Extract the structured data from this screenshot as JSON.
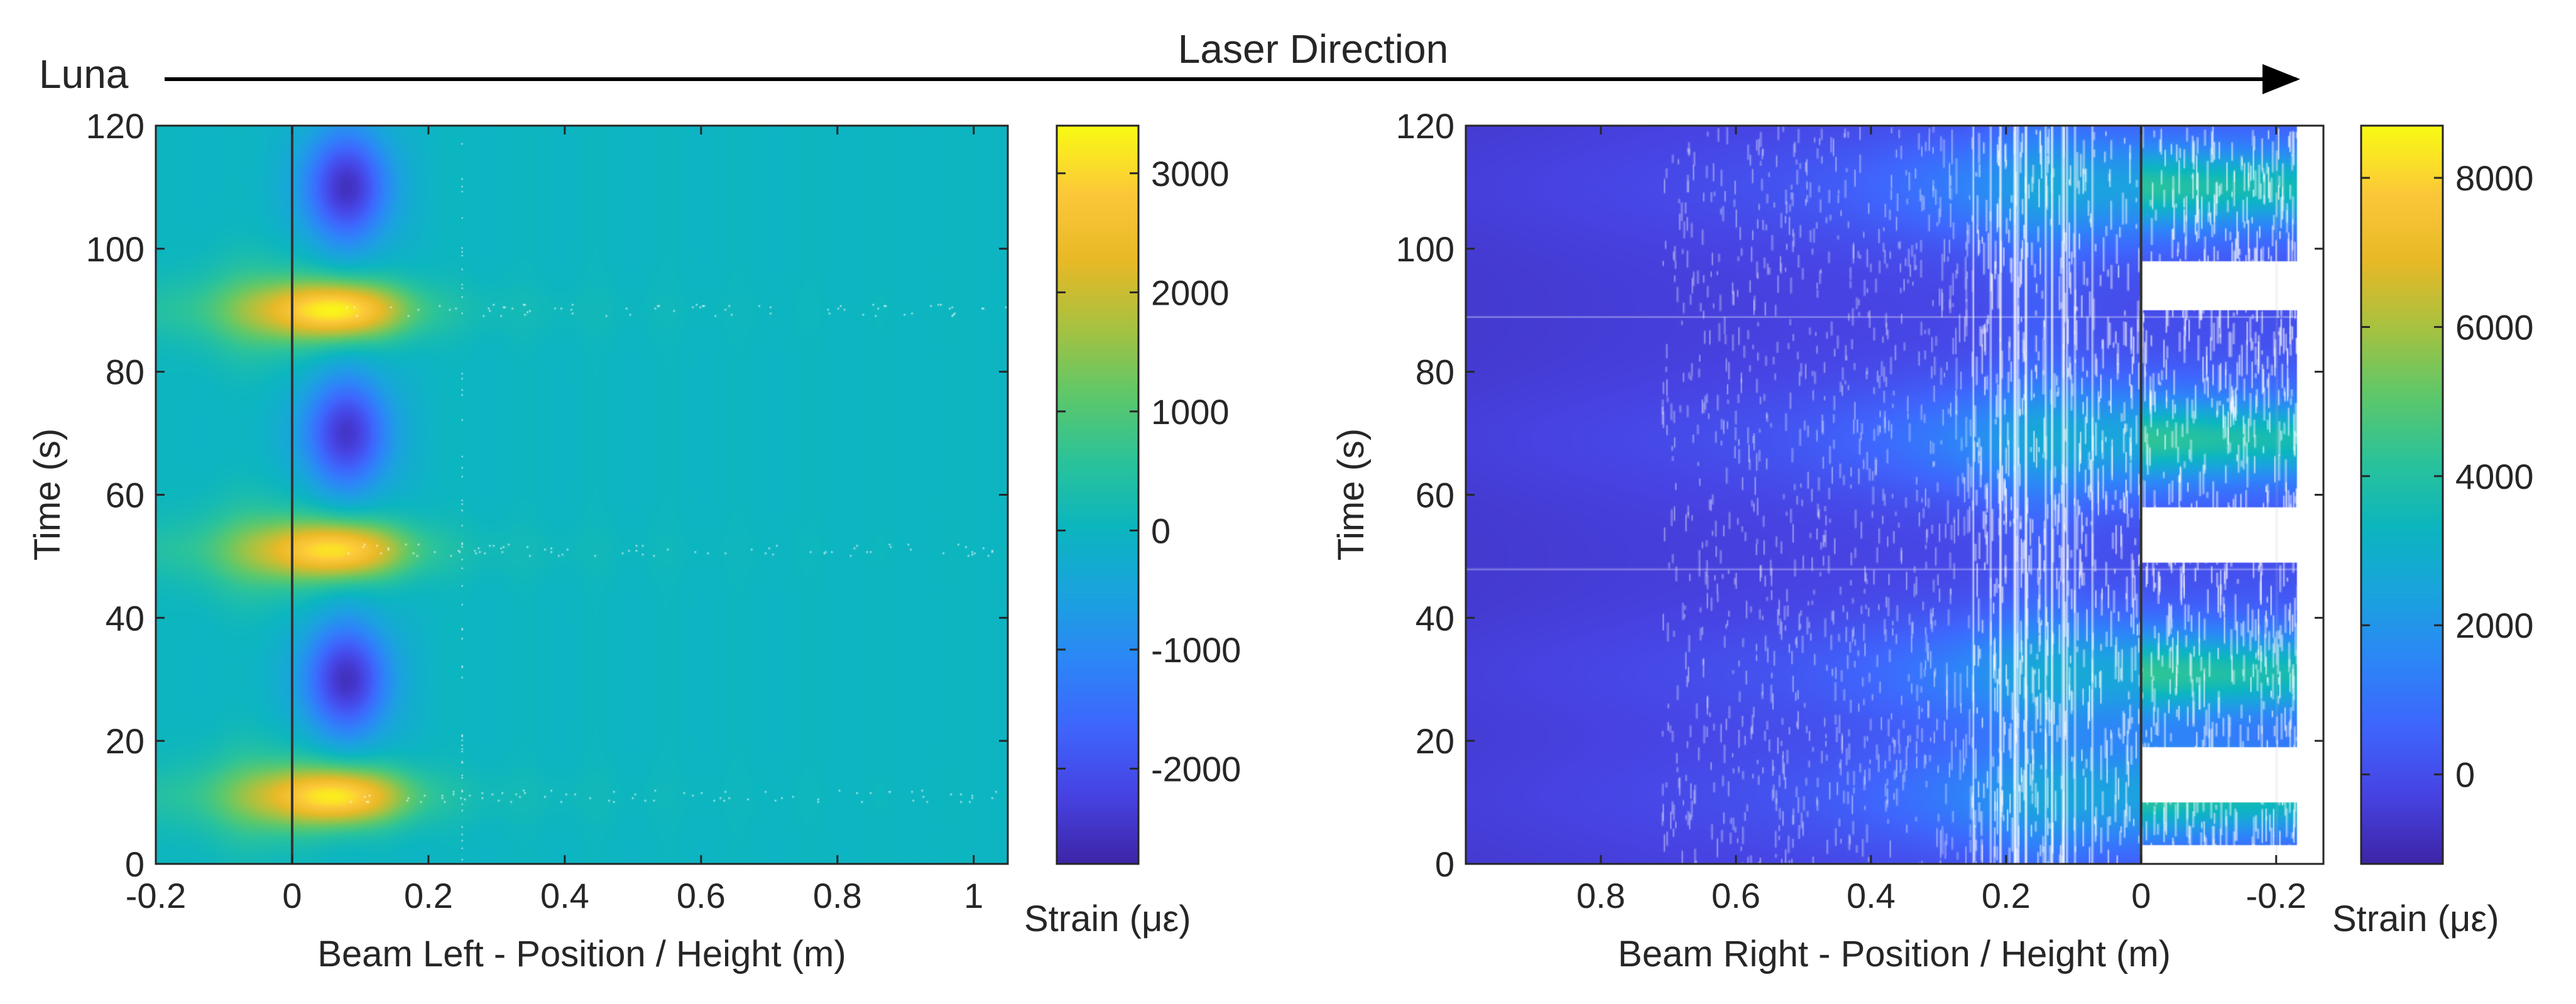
{
  "header": {
    "left_label": "Luna",
    "arrow_label": "Laser Direction"
  },
  "colors": {
    "cmap": [
      "#3e26a8",
      "#4743e3",
      "#3f65fd",
      "#2d86f8",
      "#1ba3df",
      "#0cb6c0",
      "#2bc39b",
      "#5fc86a",
      "#a8c241",
      "#e9b927",
      "#fcc83a",
      "#f9fb15"
    ],
    "axis": "#262626",
    "marker_line": "#333333"
  },
  "chart_data": [
    {
      "type": "heatmap",
      "id": "left",
      "xlabel": "Beam Left - Position / Height (m)",
      "ylabel": "Time (s)",
      "xlim": [
        -0.2,
        1.05
      ],
      "ylim": [
        0,
        120
      ],
      "x_reversed": false,
      "x_ticks": [
        -0.2,
        0,
        0.2,
        0.4,
        0.6,
        0.8,
        1
      ],
      "x_tick_labels": [
        "-0.2",
        "0",
        "0.2",
        "0.4",
        "0.6",
        "0.8",
        "1"
      ],
      "y_ticks": [
        0,
        20,
        40,
        60,
        80,
        100,
        120
      ],
      "y_tick_labels": [
        "0",
        "20",
        "40",
        "60",
        "80",
        "100",
        "120"
      ],
      "marker_x": 0,
      "colorbar": {
        "label": "Strain (με)",
        "range": [
          -2800,
          3400
        ],
        "ticks": [
          -2000,
          -1000,
          0,
          1000,
          2000,
          3000
        ],
        "tick_labels": [
          "-2000",
          "-1000",
          "0",
          "1000",
          "2000",
          "3000"
        ]
      },
      "background_strain": 0,
      "peaks": [
        {
          "t": 11,
          "strain": 3200
        },
        {
          "t": 51,
          "strain": 3100
        },
        {
          "t": 90,
          "strain": 3300
        }
      ],
      "troughs": [
        {
          "t": 30,
          "strain": -2500
        },
        {
          "t": 70,
          "strain": -2400
        },
        {
          "t": 110,
          "strain": -2500
        }
      ],
      "feature_center_x": 0.07
    },
    {
      "type": "heatmap",
      "id": "right",
      "xlabel": "Beam Right - Position / Height (m)",
      "ylabel": "Time (s)",
      "xlim": [
        -0.27,
        1.0
      ],
      "ylim": [
        0,
        120
      ],
      "x_reversed": true,
      "x_ticks": [
        0.8,
        0.6,
        0.4,
        0.2,
        0,
        -0.2
      ],
      "x_tick_labels": [
        "0.8",
        "0.6",
        "0.4",
        "0.2",
        "0",
        "-0.2"
      ],
      "y_ticks": [
        0,
        20,
        40,
        60,
        80,
        100,
        120
      ],
      "y_tick_labels": [
        "0",
        "20",
        "40",
        "60",
        "80",
        "100",
        "120"
      ],
      "marker_x": 0,
      "colorbar": {
        "label": "Strain (με)",
        "range": [
          -1200,
          8700
        ],
        "ticks": [
          0,
          2000,
          4000,
          6000,
          8000
        ],
        "tick_labels": [
          "0",
          "2000",
          "4000",
          "6000",
          "8000"
        ]
      },
      "background_strain": 0,
      "peaks": [
        {
          "t": 11,
          "strain": 2600
        },
        {
          "t": 31,
          "strain": 2800
        },
        {
          "t": 69,
          "strain": 2800
        },
        {
          "t": 110,
          "strain": 2600
        }
      ],
      "data_gaps_t": [
        [
          0,
          3
        ],
        [
          10,
          19
        ],
        [
          49,
          58
        ],
        [
          90,
          98
        ]
      ]
    }
  ]
}
